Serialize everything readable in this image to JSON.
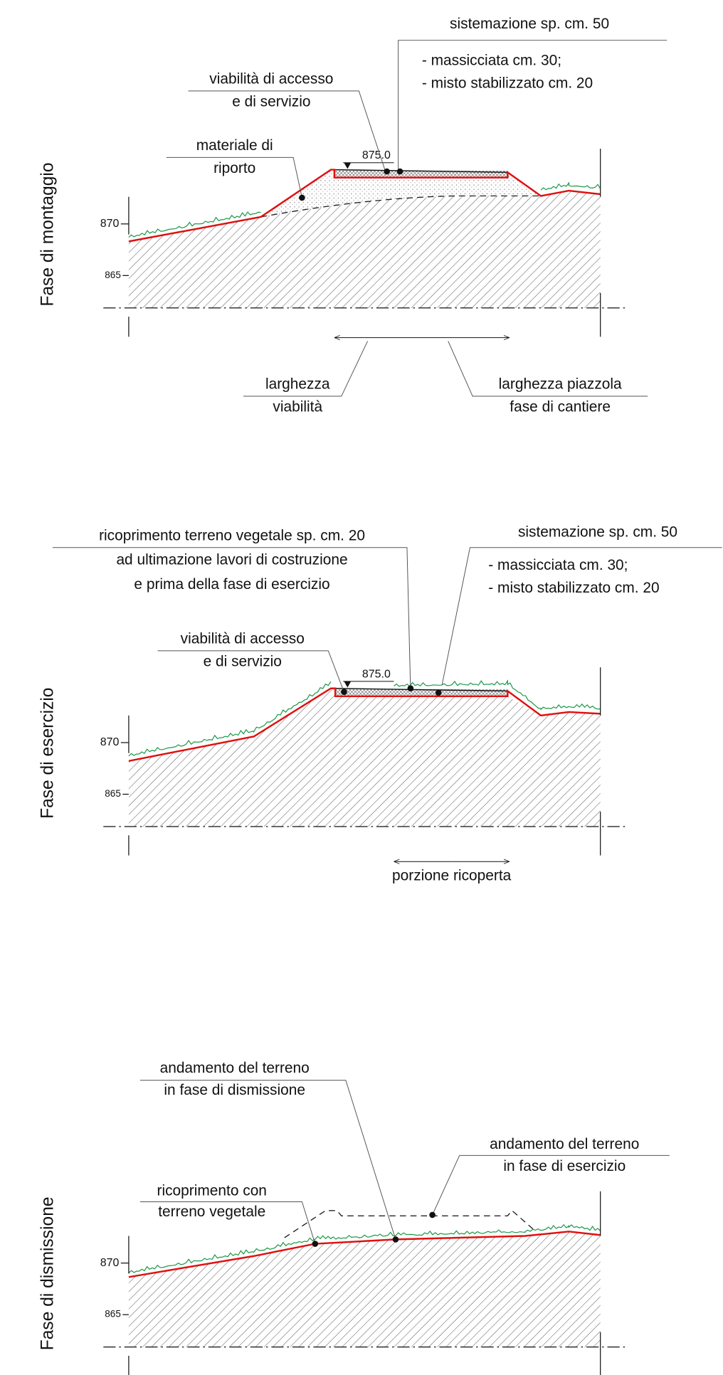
{
  "sections": [
    {
      "title": "Fase di montaggio",
      "elevations": [
        "870",
        "865"
      ],
      "level": "875.0",
      "notes": [
        [
          "sistemazione sp. cm. 50",
          "- massicciata cm. 30;",
          "- misto stabilizzato cm. 20"
        ],
        [
          "viabilità di accesso",
          "e di servizio"
        ],
        [
          "materiale di",
          "riporto"
        ],
        [
          "larghezza",
          "viabilità"
        ],
        [
          "larghezza piazzola",
          "fase di cantiere"
        ]
      ]
    },
    {
      "title": "Fase di esercizio",
      "elevations": [
        "870",
        "865"
      ],
      "level": "875.0",
      "notes": [
        [
          "ricoprimento terreno vegetale sp. cm. 20",
          "ad ultimazione lavori di costruzione",
          "e prima della fase di esercizio"
        ],
        [
          "sistemazione sp. cm. 50",
          "- massicciata cm. 30;",
          "- misto stabilizzato cm. 20"
        ],
        [
          "viabilità di accesso",
          "e di servizio"
        ],
        [
          "porzione ricoperta"
        ]
      ]
    },
    {
      "title": "Fase di dismissione",
      "elevations": [
        "870",
        "865"
      ],
      "notes": [
        [
          "andamento del terreno",
          "in fase di dismissione"
        ],
        [
          "andamento del terreno",
          "in fase di esercizio"
        ],
        [
          "ricoprimento con",
          "terreno vegetale"
        ]
      ]
    }
  ]
}
